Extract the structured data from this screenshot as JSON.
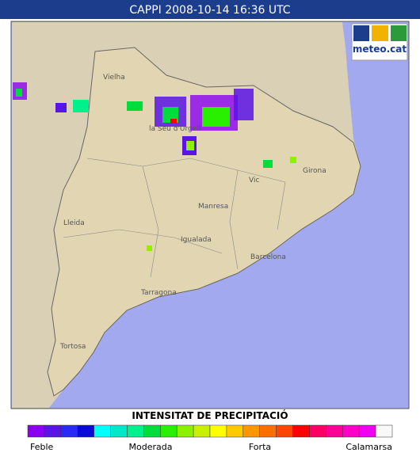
{
  "header": {
    "title": "CAPPI 2008-10-14 16:36 UTC",
    "logo": "meteo.cat"
  },
  "places": [
    "Vielha",
    "la Seu d'Urgell",
    "Vic",
    "Girona",
    "Manresa",
    "Lleida",
    "Igualada",
    "Barcelona",
    "Tarragona",
    "Tortosa"
  ],
  "legend": {
    "title": "INTENSITAT DE PRECIPITACIÓ",
    "colors": [
      "#8a00f0",
      "#5a14e6",
      "#2a2af5",
      "#0a0ad8",
      "#00ffff",
      "#00e6c8",
      "#00f08c",
      "#00dc3c",
      "#28f000",
      "#8cf000",
      "#c8f000",
      "#ffff00",
      "#ffc800",
      "#ff9600",
      "#ff6e00",
      "#ff4600",
      "#ff0000",
      "#ff0064",
      "#ff0096",
      "#ff00c8",
      "#f000f0",
      "#f8f8f8"
    ],
    "labels": [
      "Feble",
      "Moderada",
      "Forta",
      "Calamarsa"
    ]
  }
}
